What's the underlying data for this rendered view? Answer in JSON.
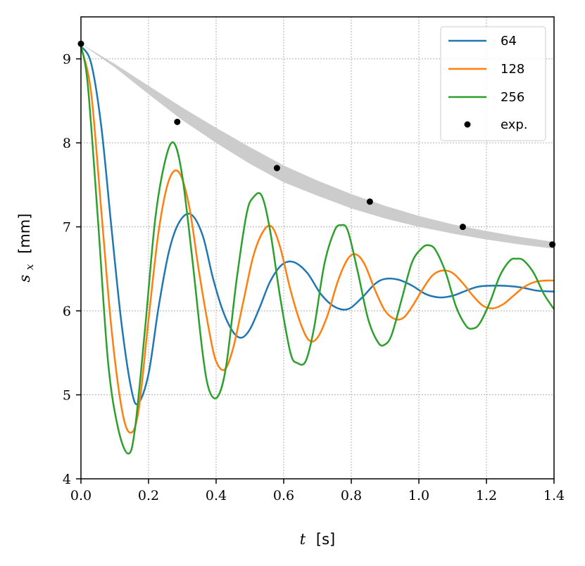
{
  "chart_data": {
    "type": "line",
    "xlabel": {
      "symbol": "t",
      "unit": "[s]"
    },
    "ylabel": {
      "symbol": "s",
      "subscript": "x",
      "unit": "[mm]"
    },
    "xlim": [
      0.0,
      1.4
    ],
    "ylim": [
      4.0,
      9.5
    ],
    "xticks": [
      0.0,
      0.2,
      0.4,
      0.6,
      0.8,
      1.0,
      1.2,
      1.4
    ],
    "xtick_labels": [
      "0.0",
      "0.2",
      "0.4",
      "0.6",
      "0.8",
      "1.0",
      "1.2",
      "1.4"
    ],
    "yticks": [
      4,
      5,
      6,
      7,
      8,
      9
    ],
    "ytick_labels": [
      "4",
      "5",
      "6",
      "7",
      "8",
      "9"
    ],
    "grid": true,
    "legend_position": "top-right",
    "colors": {
      "64": "#1f77b4",
      "128": "#ff7f0e",
      "256": "#2ca02c",
      "exp": "#000000",
      "band": "#cccccc"
    },
    "series": [
      {
        "name": "64",
        "color": "#1f77b4",
        "x": [
          0.0,
          0.03,
          0.06,
          0.09,
          0.12,
          0.15,
          0.17,
          0.2,
          0.23,
          0.26,
          0.29,
          0.325,
          0.36,
          0.39,
          0.42,
          0.45,
          0.475,
          0.5,
          0.53,
          0.56,
          0.595,
          0.63,
          0.67,
          0.71,
          0.75,
          0.79,
          0.83,
          0.87,
          0.9,
          0.94,
          0.98,
          1.02,
          1.06,
          1.1,
          1.14,
          1.18,
          1.24,
          1.3,
          1.35,
          1.4
        ],
        "y": [
          9.15,
          8.95,
          8.2,
          7.0,
          5.85,
          5.05,
          4.9,
          5.25,
          6.05,
          6.7,
          7.05,
          7.15,
          6.9,
          6.4,
          6.0,
          5.75,
          5.68,
          5.78,
          6.05,
          6.35,
          6.55,
          6.58,
          6.45,
          6.2,
          6.05,
          6.02,
          6.15,
          6.32,
          6.38,
          6.37,
          6.3,
          6.2,
          6.16,
          6.18,
          6.24,
          6.29,
          6.3,
          6.28,
          6.24,
          6.23
        ]
      },
      {
        "name": "128",
        "color": "#ff7f0e",
        "x": [
          0.0,
          0.03,
          0.06,
          0.09,
          0.12,
          0.145,
          0.17,
          0.2,
          0.23,
          0.26,
          0.29,
          0.32,
          0.35,
          0.38,
          0.4,
          0.425,
          0.45,
          0.48,
          0.51,
          0.54,
          0.565,
          0.59,
          0.62,
          0.65,
          0.675,
          0.7,
          0.73,
          0.76,
          0.79,
          0.815,
          0.84,
          0.87,
          0.9,
          0.93,
          0.955,
          0.98,
          1.01,
          1.04,
          1.07,
          1.1,
          1.13,
          1.16,
          1.19,
          1.22,
          1.25,
          1.28,
          1.31,
          1.34,
          1.37,
          1.4
        ],
        "y": [
          9.15,
          8.6,
          7.2,
          5.8,
          4.85,
          4.55,
          4.8,
          5.9,
          6.95,
          7.55,
          7.65,
          7.25,
          6.45,
          5.75,
          5.4,
          5.3,
          5.55,
          6.1,
          6.65,
          6.95,
          7.0,
          6.75,
          6.25,
          5.85,
          5.65,
          5.68,
          5.95,
          6.35,
          6.62,
          6.67,
          6.55,
          6.25,
          6.0,
          5.9,
          5.92,
          6.05,
          6.25,
          6.42,
          6.48,
          6.45,
          6.33,
          6.18,
          6.06,
          6.03,
          6.08,
          6.18,
          6.28,
          6.34,
          6.36,
          6.36
        ]
      },
      {
        "name": "256",
        "color": "#2ca02c",
        "x": [
          0.0,
          0.02,
          0.05,
          0.08,
          0.11,
          0.14,
          0.16,
          0.19,
          0.22,
          0.25,
          0.275,
          0.3,
          0.33,
          0.36,
          0.38,
          0.405,
          0.43,
          0.46,
          0.49,
          0.51,
          0.535,
          0.56,
          0.59,
          0.62,
          0.64,
          0.665,
          0.69,
          0.72,
          0.75,
          0.77,
          0.79,
          0.82,
          0.85,
          0.88,
          0.9,
          0.92,
          0.95,
          0.98,
          1.01,
          1.03,
          1.05,
          1.08,
          1.11,
          1.14,
          1.16,
          1.18,
          1.21,
          1.24,
          1.27,
          1.29,
          1.31,
          1.34,
          1.37,
          1.4
        ],
        "y": [
          9.15,
          8.7,
          7.1,
          5.4,
          4.6,
          4.3,
          4.6,
          5.8,
          7.1,
          7.8,
          8.0,
          7.6,
          6.6,
          5.5,
          5.05,
          4.98,
          5.35,
          6.35,
          7.15,
          7.35,
          7.37,
          6.95,
          6.15,
          5.5,
          5.38,
          5.4,
          5.8,
          6.55,
          6.95,
          7.02,
          6.95,
          6.45,
          5.9,
          5.62,
          5.6,
          5.72,
          6.15,
          6.58,
          6.75,
          6.78,
          6.72,
          6.45,
          6.05,
          5.82,
          5.79,
          5.85,
          6.1,
          6.42,
          6.6,
          6.62,
          6.6,
          6.45,
          6.2,
          6.02
        ]
      }
    ],
    "experimental": {
      "name": "exp.",
      "color": "#000000",
      "x": [
        0.0,
        0.285,
        0.58,
        0.855,
        1.13,
        1.395
      ],
      "y": [
        9.18,
        8.25,
        7.7,
        7.3,
        7.0,
        6.79
      ]
    },
    "band": {
      "color": "#cccccc",
      "x": [
        0.0,
        0.1,
        0.2,
        0.3,
        0.4,
        0.5,
        0.6,
        0.7,
        0.8,
        0.9,
        1.0,
        1.1,
        1.2,
        1.3,
        1.4
      ],
      "lower": [
        9.18,
        8.9,
        8.58,
        8.27,
        8.0,
        7.75,
        7.53,
        7.37,
        7.22,
        7.1,
        7.0,
        6.92,
        6.85,
        6.79,
        6.74
      ],
      "upper": [
        9.18,
        8.94,
        8.68,
        8.42,
        8.18,
        7.95,
        7.73,
        7.55,
        7.39,
        7.25,
        7.13,
        7.03,
        6.95,
        6.88,
        6.82
      ]
    }
  }
}
